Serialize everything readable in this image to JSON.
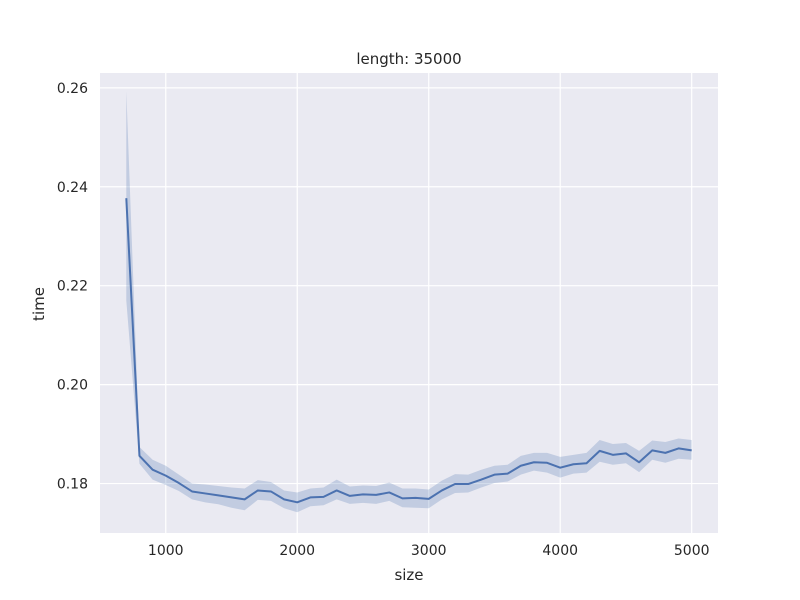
{
  "chart_data": {
    "type": "line",
    "title": "length: 35000",
    "xlabel": "size",
    "ylabel": "time",
    "xlim": [
      500,
      5200
    ],
    "ylim": [
      0.17,
      0.263
    ],
    "xticks": [
      1000,
      2000,
      3000,
      4000,
      5000
    ],
    "xtick_labels": [
      "1000",
      "2000",
      "3000",
      "4000",
      "5000"
    ],
    "yticks": [
      0.18,
      0.2,
      0.22,
      0.24,
      0.26
    ],
    "ytick_labels": [
      "0.18",
      "0.20",
      "0.22",
      "0.24",
      "0.26"
    ],
    "grid": true,
    "colors": {
      "line": "#4c72b0",
      "band": "#4c72b0",
      "background": "#eaeaf2",
      "grid": "#ffffff"
    },
    "series": [
      {
        "x": [
          700,
          800,
          900,
          1000,
          1100,
          1200,
          1300,
          1400,
          1500,
          1600,
          1700,
          1800,
          1900,
          2000,
          2100,
          2200,
          2300,
          2400,
          2500,
          2600,
          2700,
          2800,
          2900,
          3000,
          3100,
          3200,
          3300,
          3400,
          3500,
          3600,
          3700,
          3800,
          3900,
          4000,
          4100,
          4200,
          4300,
          4400,
          4500,
          4600,
          4700,
          4800,
          4900,
          5000
        ],
        "y": [
          0.2377,
          0.1856,
          0.1828,
          0.1816,
          0.1801,
          0.1784,
          0.178,
          0.1776,
          0.1772,
          0.1768,
          0.1786,
          0.1784,
          0.1768,
          0.1762,
          0.1772,
          0.1773,
          0.1786,
          0.1775,
          0.1778,
          0.1777,
          0.1782,
          0.177,
          0.1771,
          0.1769,
          0.1786,
          0.1799,
          0.1799,
          0.1808,
          0.1818,
          0.182,
          0.1836,
          0.1843,
          0.1842,
          0.1832,
          0.1839,
          0.1841,
          0.1866,
          0.1858,
          0.1861,
          0.1843,
          0.1867,
          0.1862,
          0.1871,
          0.1867
        ],
        "lower": [
          0.217,
          0.184,
          0.1808,
          0.1797,
          0.1785,
          0.1768,
          0.1762,
          0.1758,
          0.1751,
          0.1746,
          0.1767,
          0.1765,
          0.175,
          0.1742,
          0.1754,
          0.1756,
          0.1768,
          0.1759,
          0.1761,
          0.1759,
          0.1765,
          0.1752,
          0.1751,
          0.175,
          0.1768,
          0.1781,
          0.1782,
          0.1792,
          0.1801,
          0.1804,
          0.1818,
          0.1826,
          0.1822,
          0.1812,
          0.182,
          0.1822,
          0.1844,
          0.1838,
          0.1841,
          0.1823,
          0.1848,
          0.1842,
          0.185,
          0.1848
        ],
        "upper": [
          0.2593,
          0.1874,
          0.1848,
          0.1836,
          0.1818,
          0.18,
          0.1798,
          0.1795,
          0.1792,
          0.179,
          0.1807,
          0.1803,
          0.1786,
          0.1782,
          0.179,
          0.1792,
          0.1808,
          0.1794,
          0.1796,
          0.1795,
          0.1802,
          0.179,
          0.179,
          0.1788,
          0.1806,
          0.1819,
          0.1818,
          0.1828,
          0.1836,
          0.1838,
          0.1856,
          0.1862,
          0.1862,
          0.1854,
          0.1858,
          0.1862,
          0.1888,
          0.188,
          0.1882,
          0.1866,
          0.1887,
          0.1884,
          0.1891,
          0.1888
        ]
      }
    ]
  }
}
